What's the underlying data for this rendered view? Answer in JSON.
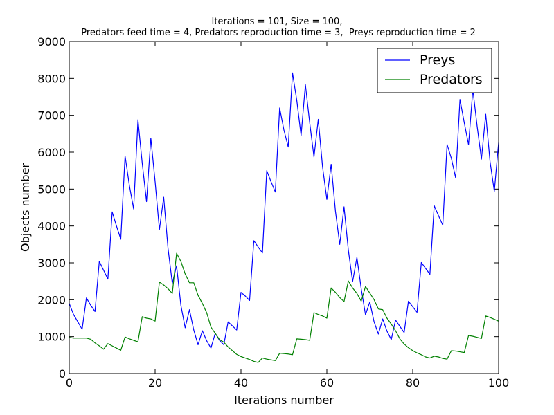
{
  "chart_data": {
    "type": "line",
    "title_line1": "Iterations = 101, Size = 100,",
    "title_line2": " Predators feed time = 4, Predators reproduction time = 3,  Preys reproduction time = 2",
    "xlabel": "Iterations number",
    "ylabel": "Objects number",
    "xlim": [
      0,
      100
    ],
    "ylim": [
      0,
      9000
    ],
    "xticks": [
      0,
      20,
      40,
      60,
      80,
      100
    ],
    "yticks": [
      0,
      1000,
      2000,
      3000,
      4000,
      5000,
      6000,
      7000,
      8000,
      9000
    ],
    "grid": false,
    "legend_position": "top-right",
    "x": [
      0,
      1,
      2,
      3,
      4,
      5,
      6,
      7,
      8,
      9,
      10,
      11,
      12,
      13,
      14,
      15,
      16,
      17,
      18,
      19,
      20,
      21,
      22,
      23,
      24,
      25,
      26,
      27,
      28,
      29,
      30,
      31,
      32,
      33,
      34,
      35,
      36,
      37,
      38,
      39,
      40,
      41,
      42,
      43,
      44,
      45,
      46,
      47,
      48,
      49,
      50,
      51,
      52,
      53,
      54,
      55,
      56,
      57,
      58,
      59,
      60,
      61,
      62,
      63,
      64,
      65,
      66,
      67,
      68,
      69,
      70,
      71,
      72,
      73,
      74,
      75,
      76,
      77,
      78,
      79,
      80,
      81,
      82,
      83,
      84,
      85,
      86,
      87,
      88,
      89,
      90,
      91,
      92,
      93,
      94,
      95,
      96,
      97,
      98,
      99,
      100
    ],
    "series": [
      {
        "name": "Preys",
        "color": "#0000ff",
        "values": [
          1900,
          1600,
          1400,
          1200,
          2050,
          1850,
          1680,
          3040,
          2800,
          2560,
          4380,
          4000,
          3640,
          5900,
          5100,
          4460,
          6880,
          5700,
          4660,
          6380,
          5200,
          3900,
          4780,
          3400,
          2450,
          2920,
          1850,
          1240,
          1730,
          1180,
          780,
          1160,
          890,
          690,
          1090,
          900,
          780,
          1400,
          1290,
          1180,
          2200,
          2100,
          1980,
          3600,
          3430,
          3270,
          5500,
          5200,
          4920,
          7200,
          6600,
          6140,
          8150,
          7400,
          6450,
          7830,
          6800,
          5870,
          6890,
          5600,
          4720,
          5670,
          4400,
          3500,
          4520,
          3350,
          2490,
          3150,
          2300,
          1590,
          1940,
          1400,
          1070,
          1480,
          1150,
          920,
          1450,
          1280,
          1110,
          1960,
          1810,
          1660,
          3010,
          2850,
          2690,
          4550,
          4280,
          4020,
          6210,
          5830,
          5300,
          7430,
          6800,
          6200,
          7700,
          6700,
          5810,
          7030,
          5750,
          4940,
          6260
        ]
      },
      {
        "name": "Predators",
        "color": "#008000",
        "values": [
          980,
          960,
          960,
          960,
          960,
          930,
          830,
          750,
          660,
          810,
          750,
          690,
          630,
          990,
          940,
          900,
          860,
          1540,
          1500,
          1480,
          1420,
          2480,
          2400,
          2300,
          2170,
          3260,
          3040,
          2700,
          2460,
          2460,
          2120,
          1900,
          1650,
          1260,
          1090,
          920,
          850,
          720,
          620,
          520,
          460,
          420,
          380,
          330,
          300,
          420,
          390,
          370,
          350,
          550,
          540,
          530,
          510,
          940,
          930,
          920,
          900,
          1650,
          1600,
          1560,
          1500,
          2320,
          2200,
          2060,
          1950,
          2510,
          2320,
          2170,
          1960,
          2360,
          2180,
          2000,
          1750,
          1730,
          1500,
          1340,
          1160,
          940,
          800,
          700,
          620,
          560,
          510,
          450,
          420,
          470,
          450,
          410,
          390,
          620,
          610,
          590,
          570,
          1030,
          1010,
          980,
          950,
          1560,
          1520,
          1470,
          1420
        ]
      }
    ]
  }
}
